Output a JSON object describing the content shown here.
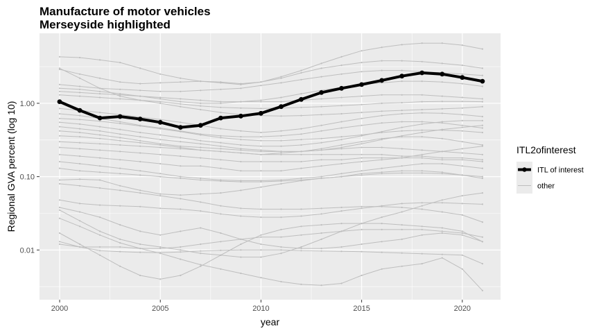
{
  "chart_data": {
    "type": "line",
    "title": "Manufacture of motor vehicles",
    "subtitle": "Merseyside highlighted",
    "xlabel": "year",
    "ylabel": "Regional GVA percent (log 10)",
    "y_scale": "log10",
    "xlim": [
      1999.0,
      2021.9
    ],
    "ylim": [
      0.0021,
      9.0
    ],
    "x_ticks": [
      2000,
      2005,
      2010,
      2015,
      2020
    ],
    "x_tick_labels": [
      "2000",
      "2005",
      "2010",
      "2015",
      "2020"
    ],
    "y_ticks": [
      0.01,
      0.1,
      1.0
    ],
    "y_tick_labels": [
      "0.01",
      "0.10",
      "1.00"
    ],
    "grid": true,
    "legend": {
      "title": "ITL2ofinterest",
      "position": "right",
      "entries": [
        {
          "label": "ITL of interest",
          "color": "#000000"
        },
        {
          "label": "other",
          "color": "#bebebe"
        }
      ]
    },
    "x": [
      2000,
      2001,
      2002,
      2003,
      2004,
      2005,
      2006,
      2007,
      2008,
      2009,
      2010,
      2011,
      2012,
      2013,
      2014,
      2015,
      2016,
      2017,
      2018,
      2019,
      2020,
      2021
    ],
    "highlight": {
      "name": "ITL of interest",
      "color": "#000000",
      "values": [
        1.05,
        0.8,
        0.63,
        0.66,
        0.61,
        0.55,
        0.47,
        0.5,
        0.63,
        0.67,
        0.73,
        0.9,
        1.13,
        1.4,
        1.6,
        1.8,
        2.05,
        2.35,
        2.6,
        2.5,
        2.25,
        2.0
      ]
    },
    "series": [
      {
        "values": [
          4.3,
          4.2,
          3.9,
          3.6,
          3.0,
          2.5,
          2.2,
          2.0,
          1.9,
          1.8,
          1.95,
          2.3,
          2.8,
          3.5,
          4.3,
          5.2,
          5.8,
          6.3,
          6.6,
          6.6,
          6.2,
          5.5
        ]
      },
      {
        "values": [
          2.9,
          2.5,
          2.2,
          1.95,
          1.85,
          1.9,
          1.95,
          2.0,
          1.95,
          1.85,
          1.95,
          2.2,
          2.6,
          3.0,
          3.3,
          3.6,
          3.8,
          3.8,
          3.7,
          3.5,
          3.3,
          3.0
        ]
      },
      {
        "values": [
          1.8,
          1.7,
          1.6,
          1.55,
          1.5,
          1.45,
          1.45,
          1.5,
          1.55,
          1.6,
          1.75,
          1.9,
          2.1,
          2.3,
          2.5,
          2.7,
          2.8,
          2.8,
          2.7,
          2.6,
          2.5,
          2.4
        ]
      },
      {
        "values": [
          1.6,
          1.55,
          1.45,
          1.35,
          1.25,
          1.15,
          1.05,
          1.0,
          1.0,
          1.05,
          1.1,
          1.2,
          1.35,
          1.5,
          1.65,
          1.8,
          1.9,
          2.0,
          2.0,
          1.95,
          1.85,
          1.7
        ]
      },
      {
        "values": [
          1.45,
          1.4,
          1.35,
          1.3,
          1.25,
          1.2,
          1.15,
          1.1,
          1.05,
          1.05,
          1.05,
          1.05,
          1.1,
          1.15,
          1.2,
          1.25,
          1.3,
          1.3,
          1.3,
          1.25,
          1.2,
          1.15
        ]
      },
      {
        "values": [
          1.3,
          1.25,
          1.2,
          1.15,
          1.1,
          1.05,
          0.98,
          0.92,
          0.88,
          0.86,
          0.85,
          0.86,
          0.88,
          0.9,
          0.93,
          0.96,
          1.0,
          1.02,
          1.05,
          1.06,
          1.06,
          1.05
        ]
      },
      {
        "values": [
          3.0,
          2.2,
          1.6,
          1.25,
          1.1,
          1.0,
          0.9,
          0.82,
          0.75,
          0.7,
          0.68,
          0.67,
          0.68,
          0.7,
          0.72,
          0.75,
          0.78,
          0.8,
          0.82,
          0.84,
          0.86,
          0.9
        ]
      },
      {
        "values": [
          0.85,
          0.8,
          0.75,
          0.7,
          0.65,
          0.6,
          0.55,
          0.5,
          0.45,
          0.42,
          0.4,
          0.42,
          0.45,
          0.5,
          0.56,
          0.62,
          0.68,
          0.72,
          0.74,
          0.73,
          0.7,
          0.66
        ]
      },
      {
        "values": [
          0.72,
          0.68,
          0.62,
          0.56,
          0.5,
          0.46,
          0.42,
          0.38,
          0.36,
          0.35,
          0.35,
          0.36,
          0.38,
          0.42,
          0.46,
          0.5,
          0.54,
          0.56,
          0.56,
          0.54,
          0.5,
          0.46
        ]
      },
      {
        "values": [
          0.62,
          0.6,
          0.57,
          0.53,
          0.49,
          0.45,
          0.41,
          0.37,
          0.34,
          0.32,
          0.31,
          0.31,
          0.32,
          0.33,
          0.35,
          0.37,
          0.4,
          0.42,
          0.43,
          0.43,
          0.42,
          0.4
        ]
      },
      {
        "values": [
          0.55,
          0.52,
          0.48,
          0.44,
          0.4,
          0.37,
          0.34,
          0.31,
          0.29,
          0.27,
          0.26,
          0.26,
          0.27,
          0.29,
          0.32,
          0.36,
          0.41,
          0.47,
          0.52,
          0.56,
          0.58,
          0.58
        ]
      },
      {
        "values": [
          0.48,
          0.45,
          0.42,
          0.38,
          0.35,
          0.32,
          0.3,
          0.28,
          0.26,
          0.24,
          0.23,
          0.22,
          0.22,
          0.23,
          0.25,
          0.28,
          0.32,
          0.36,
          0.4,
          0.44,
          0.47,
          0.5
        ]
      },
      {
        "values": [
          0.42,
          0.4,
          0.37,
          0.34,
          0.31,
          0.28,
          0.26,
          0.25,
          0.24,
          0.23,
          0.22,
          0.22,
          0.22,
          0.23,
          0.24,
          0.25,
          0.25,
          0.24,
          0.23,
          0.22,
          0.21,
          0.2
        ]
      },
      {
        "values": [
          0.36,
          0.35,
          0.33,
          0.31,
          0.29,
          0.27,
          0.25,
          0.23,
          0.22,
          0.21,
          0.2,
          0.21,
          0.22,
          0.24,
          0.27,
          0.3,
          0.33,
          0.35,
          0.35,
          0.33,
          0.3,
          0.27
        ]
      },
      {
        "values": [
          0.3,
          0.29,
          0.28,
          0.27,
          0.26,
          0.25,
          0.24,
          0.23,
          0.22,
          0.21,
          0.2,
          0.2,
          0.2,
          0.2,
          0.2,
          0.2,
          0.2,
          0.19,
          0.19,
          0.18,
          0.18,
          0.17
        ]
      },
      {
        "values": [
          0.25,
          0.24,
          0.23,
          0.22,
          0.21,
          0.2,
          0.19,
          0.18,
          0.17,
          0.16,
          0.16,
          0.16,
          0.16,
          0.17,
          0.17,
          0.18,
          0.18,
          0.18,
          0.18,
          0.17,
          0.17,
          0.16
        ]
      },
      {
        "values": [
          0.2,
          0.19,
          0.18,
          0.17,
          0.16,
          0.15,
          0.14,
          0.14,
          0.13,
          0.12,
          0.12,
          0.12,
          0.13,
          0.14,
          0.15,
          0.16,
          0.17,
          0.18,
          0.2,
          0.22,
          0.24,
          0.26
        ]
      },
      {
        "values": [
          0.16,
          0.15,
          0.14,
          0.13,
          0.12,
          0.11,
          0.1,
          0.095,
          0.09,
          0.088,
          0.088,
          0.09,
          0.095,
          0.1,
          0.11,
          0.12,
          0.13,
          0.14,
          0.15,
          0.15,
          0.14,
          0.13
        ]
      },
      {
        "values": [
          0.13,
          0.12,
          0.115,
          0.11,
          0.105,
          0.1,
          0.095,
          0.09,
          0.087,
          0.085,
          0.085,
          0.087,
          0.09,
          0.095,
          0.1,
          0.11,
          0.115,
          0.12,
          0.12,
          0.115,
          0.105,
          0.095
        ]
      },
      {
        "values": [
          0.09,
          0.092,
          0.09,
          0.075,
          0.065,
          0.058,
          0.056,
          0.058,
          0.06,
          0.065,
          0.072,
          0.08,
          0.088,
          0.095,
          0.1,
          0.105,
          0.11,
          0.112,
          0.112,
          0.11,
          0.105,
          0.1
        ]
      },
      {
        "values": [
          0.048,
          0.043,
          0.041,
          0.04,
          0.039,
          0.037,
          0.036,
          0.034,
          0.031,
          0.029,
          0.028,
          0.028,
          0.029,
          0.031,
          0.034,
          0.037,
          0.04,
          0.043,
          0.044,
          0.044,
          0.043,
          0.042
        ]
      },
      {
        "values": [
          0.08,
          0.075,
          0.07,
          0.065,
          0.06,
          0.055,
          0.05,
          0.045,
          0.04,
          0.037,
          0.036,
          0.036,
          0.036,
          0.037,
          0.038,
          0.039,
          0.039,
          0.038,
          0.036,
          0.033,
          0.03,
          0.024
        ]
      },
      {
        "values": [
          0.035,
          0.025,
          0.018,
          0.014,
          0.012,
          0.011,
          0.01,
          0.009,
          0.0085,
          0.008,
          0.008,
          0.009,
          0.011,
          0.014,
          0.018,
          0.023,
          0.028,
          0.033,
          0.04,
          0.048,
          0.055,
          0.06
        ]
      },
      {
        "values": [
          0.017,
          0.012,
          0.0085,
          0.006,
          0.0045,
          0.004,
          0.0045,
          0.006,
          0.0085,
          0.012,
          0.016,
          0.019,
          0.021,
          0.022,
          0.023,
          0.023,
          0.023,
          0.022,
          0.021,
          0.02,
          0.018,
          0.013
        ]
      },
      {
        "values": [
          0.013,
          0.011,
          0.011,
          0.011,
          0.0105,
          0.0105,
          0.011,
          0.012,
          0.013,
          0.014,
          0.015,
          0.015,
          0.016,
          0.017,
          0.018,
          0.019,
          0.019,
          0.019,
          0.019,
          0.018,
          0.017,
          0.015
        ]
      },
      {
        "values": [
          0.012,
          0.011,
          0.0098,
          0.0095,
          0.0093,
          0.0092,
          0.0094,
          0.0097,
          0.0099,
          0.01,
          0.01,
          0.01,
          0.0098,
          0.0097,
          0.0096,
          0.0095,
          0.0093,
          0.0091,
          0.0089,
          0.0087,
          0.0085,
          0.0065
        ]
      },
      {
        "values": [
          0.027,
          0.021,
          0.016,
          0.0125,
          0.0105,
          0.009,
          0.0075,
          0.0063,
          0.0055,
          0.0048,
          0.0042,
          0.0037,
          0.0034,
          0.0033,
          0.0035,
          0.0045,
          0.0055,
          0.006,
          0.0065,
          0.0078,
          0.0055,
          0.0028
        ]
      },
      {
        "values": [
          0.038,
          0.033,
          0.028,
          0.022,
          0.018,
          0.016,
          0.018,
          0.02,
          0.017,
          0.014,
          0.012,
          0.011,
          0.0105,
          0.0105,
          0.011,
          0.012,
          0.013,
          0.014,
          0.016,
          0.017,
          0.016,
          0.013
        ]
      }
    ]
  }
}
